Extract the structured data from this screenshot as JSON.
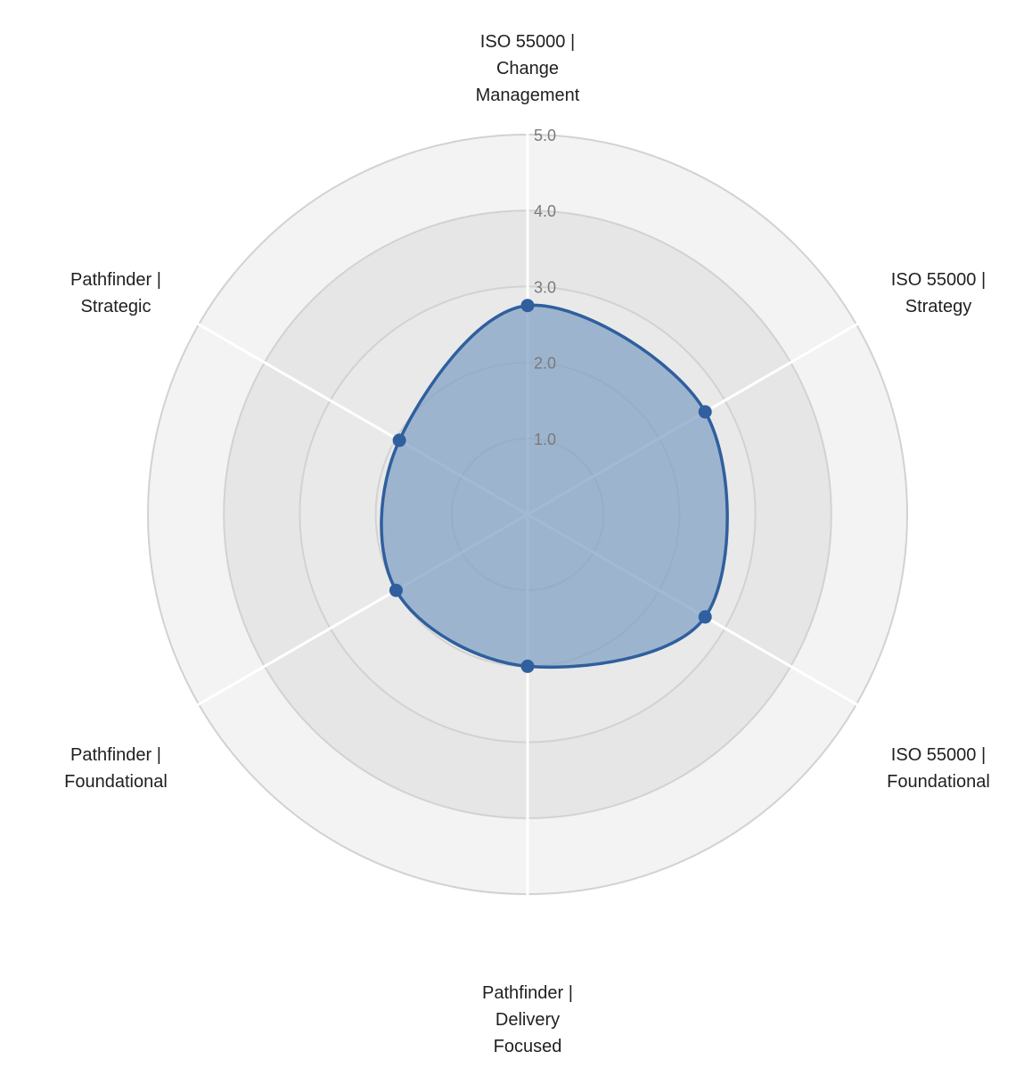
{
  "chart_data": {
    "type": "radar",
    "title": "",
    "axes": [
      {
        "lines": [
          "ISO 55000 |",
          "Change",
          "Management"
        ],
        "value": 2.75
      },
      {
        "lines": [
          "ISO 55000 |",
          "Strategy"
        ],
        "value": 2.7
      },
      {
        "lines": [
          "ISO 55000 |",
          "Foundational"
        ],
        "value": 2.7
      },
      {
        "lines": [
          "Pathfinder |",
          "Delivery",
          "Focused"
        ],
        "value": 2.0
      },
      {
        "lines": [
          "Pathfinder |",
          "Foundational"
        ],
        "value": 2.0
      },
      {
        "lines": [
          "Pathfinder |",
          "Strategic"
        ],
        "value": 1.95
      }
    ],
    "series": [
      {
        "values": [
          2.75,
          2.7,
          2.7,
          2.0,
          2.0,
          1.95
        ]
      }
    ],
    "range": [
      0,
      5
    ],
    "ticks": [
      "1.0",
      "2.0",
      "3.0",
      "4.0",
      "5.0"
    ],
    "grid": true,
    "colors": {
      "line": "#2f5f9e",
      "fill": "#7f9fc4",
      "grid": "#d2d2d2",
      "ring_outer": "#f3f3f3",
      "ring_inner": "#e6e6e6",
      "spoke": "#ffffff"
    }
  }
}
